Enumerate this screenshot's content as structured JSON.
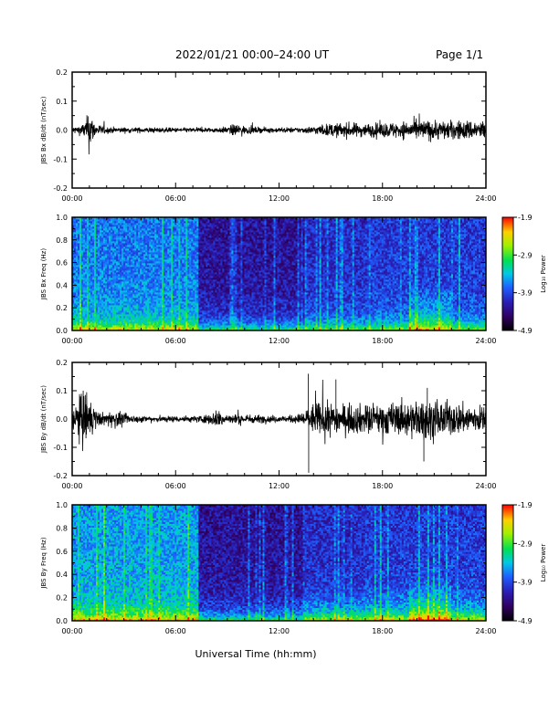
{
  "header": {
    "title": "2022/01/21  00:00–24:00 UT",
    "page": "Page 1/1"
  },
  "footer": {
    "xlabel": "Universal Time (hh:mm)"
  },
  "chart_data": [
    {
      "type": "line",
      "ylabel": "JBS Bx dB/dt (nT/sec)",
      "ylim": [
        -0.2,
        0.2
      ],
      "yticks": [
        "0.2",
        "0.1",
        "0.0",
        "-0.1",
        "-0.2"
      ],
      "xticks": [
        "00:00",
        "06:00",
        "12:00",
        "18:00",
        "24:00"
      ],
      "xlim_hours": [
        0,
        24
      ],
      "envelope": {
        "hours": [
          0,
          0.5,
          0.8,
          1.0,
          1.3,
          2,
          3,
          4,
          5,
          6,
          7,
          8,
          9,
          9.5,
          10,
          11,
          12,
          13,
          14,
          15,
          16,
          17,
          18,
          19,
          20,
          21,
          22,
          23,
          24
        ],
        "amp": [
          0.01,
          0.015,
          0.03,
          0.07,
          0.02,
          0.01,
          0.008,
          0.008,
          0.008,
          0.007,
          0.007,
          0.007,
          0.01,
          0.02,
          0.012,
          0.008,
          0.008,
          0.008,
          0.012,
          0.02,
          0.022,
          0.02,
          0.022,
          0.025,
          0.03,
          0.03,
          0.028,
          0.03,
          0.03
        ]
      }
    },
    {
      "type": "heatmap",
      "ylabel": "JBS Bx Freq (Hz)",
      "ylim": [
        0,
        1.0
      ],
      "yticks": [
        "1.0",
        "0.8",
        "0.6",
        "0.4",
        "0.2",
        "0.0"
      ],
      "xticks": [
        "00:00",
        "06:00",
        "12:00",
        "18:00",
        "24:00"
      ],
      "xlim_hours": [
        0,
        24
      ],
      "colorbar": {
        "label": "Log₁₀ Power",
        "ticks": [
          "-1.9",
          "-2.9",
          "-3.9",
          "-4.9"
        ],
        "range": [
          -4.9,
          -1.9
        ]
      }
    },
    {
      "type": "line",
      "ylabel": "JBS By dB/dt (nT/sec)",
      "ylim": [
        -0.2,
        0.2
      ],
      "yticks": [
        "0.2",
        "0.1",
        "0.0",
        "-0.1",
        "-0.2"
      ],
      "xticks": [
        "00:00",
        "06:00",
        "12:00",
        "18:00",
        "24:00"
      ],
      "xlim_hours": [
        0,
        24
      ],
      "envelope": {
        "hours": [
          0,
          0.3,
          0.6,
          1.0,
          1.5,
          2,
          2.5,
          3,
          4,
          5,
          6,
          7,
          8,
          8.5,
          9,
          10,
          11,
          12,
          13,
          13.6,
          14,
          15,
          16,
          17,
          18,
          19,
          20,
          21,
          22,
          23,
          24
        ],
        "amp": [
          0.03,
          0.06,
          0.09,
          0.07,
          0.02,
          0.02,
          0.03,
          0.015,
          0.01,
          0.01,
          0.01,
          0.01,
          0.015,
          0.03,
          0.015,
          0.015,
          0.012,
          0.01,
          0.012,
          0.03,
          0.05,
          0.05,
          0.045,
          0.045,
          0.05,
          0.05,
          0.06,
          0.06,
          0.05,
          0.045,
          0.04
        ]
      },
      "spikes": [
        {
          "hour": 13.7,
          "y": 0.16
        },
        {
          "hour": 13.72,
          "y": -0.19
        },
        {
          "hour": 15.3,
          "y": 0.14
        },
        {
          "hour": 20.4,
          "y": -0.15
        },
        {
          "hour": 20.6,
          "y": 0.11
        }
      ]
    },
    {
      "type": "heatmap",
      "ylabel": "JBS By Freq (Hz)",
      "ylim": [
        0,
        1.0
      ],
      "yticks": [
        "1.0",
        "0.8",
        "0.6",
        "0.4",
        "0.2",
        "0.0"
      ],
      "xticks": [
        "00:00",
        "06:00",
        "12:00",
        "18:00",
        "24:00"
      ],
      "xlim_hours": [
        0,
        24
      ],
      "colorbar": {
        "label": "Log₁₀ Power",
        "ticks": [
          "-1.9",
          "-2.9",
          "-3.9",
          "-4.9"
        ],
        "range": [
          -4.9,
          -1.9
        ]
      }
    }
  ]
}
